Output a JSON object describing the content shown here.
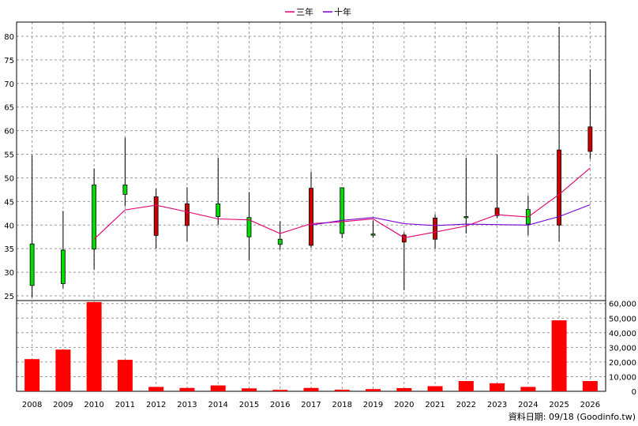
{
  "chart_data": [
    {
      "type": "candlestick",
      "legend": [
        {
          "name": "三年",
          "color": "#e0006f"
        },
        {
          "name": "十年",
          "color": "#7a00d0"
        }
      ],
      "legend_position": "top-center",
      "grid": true,
      "ylim": [
        24,
        83
      ],
      "yticks": [
        25,
        30,
        35,
        40,
        45,
        50,
        55,
        60,
        65,
        70,
        75,
        80
      ],
      "categories": [
        "2008",
        "2009",
        "2010",
        "2011",
        "2012",
        "2013",
        "2014",
        "2015",
        "2016",
        "2017",
        "2018",
        "2019",
        "2020",
        "2021",
        "2022",
        "2023",
        "2024",
        "2025",
        "2026"
      ],
      "candles": [
        {
          "year": "2008",
          "open": 27.2,
          "close": 36.0,
          "high": 54.8,
          "low": 24.7
        },
        {
          "year": "2009",
          "open": 27.6,
          "close": 34.7,
          "high": 43.0,
          "low": 26.6
        },
        {
          "year": "2010",
          "open": 34.9,
          "close": 48.5,
          "high": 52.0,
          "low": 30.6
        },
        {
          "year": "2011",
          "open": 46.5,
          "close": 48.5,
          "high": 58.5,
          "low": 44.0
        },
        {
          "year": "2012",
          "open": 46.0,
          "close": 37.8,
          "high": 47.7,
          "low": 35.0
        },
        {
          "year": "2013",
          "open": 44.5,
          "close": 39.9,
          "high": 48.0,
          "low": 36.5
        },
        {
          "year": "2014",
          "open": 41.8,
          "close": 44.5,
          "high": 54.3,
          "low": 40.0
        },
        {
          "year": "2015",
          "open": 37.5,
          "close": 41.6,
          "high": 47.0,
          "low": 32.5
        },
        {
          "year": "2016",
          "open": 35.9,
          "close": 37.0,
          "high": 40.8,
          "low": 34.8
        },
        {
          "year": "2017",
          "open": 47.8,
          "close": 35.7,
          "high": 51.3,
          "low": 35.2
        },
        {
          "year": "2018",
          "open": 38.2,
          "close": 47.9,
          "high": 48.0,
          "low": 37.2
        },
        {
          "year": "2019",
          "open": 38.1,
          "close": 38.1,
          "high": 41.0,
          "low": 37.3
        },
        {
          "year": "2020",
          "open": 37.9,
          "close": 36.4,
          "high": 38.4,
          "low": 26.2
        },
        {
          "year": "2021",
          "open": 41.5,
          "close": 37.0,
          "high": 42.3,
          "low": 35.0
        },
        {
          "year": "2022",
          "open": 41.8,
          "close": 41.8,
          "high": 54.3,
          "low": 38.2
        },
        {
          "year": "2023",
          "open": 43.6,
          "close": 42.0,
          "high": 55.0,
          "low": 41.5
        },
        {
          "year": "2024",
          "open": 40.2,
          "close": 43.3,
          "high": 46.3,
          "low": 37.8
        },
        {
          "year": "2025",
          "open": 55.9,
          "close": 40.0,
          "high": 82.0,
          "low": 36.5
        },
        {
          "year": "2026",
          "open": 60.8,
          "close": 55.6,
          "high": 73.0,
          "low": 54.0
        }
      ],
      "series": [
        {
          "name": "三年",
          "values": [
            null,
            null,
            37.0,
            43.2,
            44.2,
            42.8,
            41.3,
            41.1,
            38.2,
            40.3,
            40.7,
            41.3,
            37.3,
            38.5,
            39.8,
            42.2,
            41.7,
            46.5,
            52.1
          ]
        },
        {
          "name": "十年",
          "values": [
            null,
            null,
            null,
            null,
            null,
            null,
            null,
            null,
            null,
            40.0,
            41.0,
            41.6,
            40.3,
            39.9,
            40.2,
            40.1,
            40.0,
            41.8,
            44.3
          ]
        }
      ]
    },
    {
      "type": "bar",
      "categories": [
        "2008",
        "2009",
        "2010",
        "2011",
        "2012",
        "2013",
        "2014",
        "2015",
        "2016",
        "2017",
        "2018",
        "2019",
        "2020",
        "2021",
        "2022",
        "2023",
        "2024",
        "2025",
        "2026"
      ],
      "values": [
        22000,
        28500,
        61000,
        21500,
        3000,
        2300,
        4000,
        2000,
        1000,
        2300,
        1100,
        1500,
        2200,
        3500,
        7000,
        5500,
        3000,
        48500,
        7000
      ],
      "ylim": [
        0,
        62000
      ],
      "yticks": [
        0,
        10000,
        20000,
        30000,
        40000,
        50000,
        60000
      ],
      "ytick_labels": [
        "0",
        "10,000",
        "20,000",
        "30,000",
        "40,000",
        "50,000",
        "60,000"
      ],
      "color": "#ff0000"
    }
  ],
  "footer": "資料日期: 09/18  (Goodinfo.tw)"
}
